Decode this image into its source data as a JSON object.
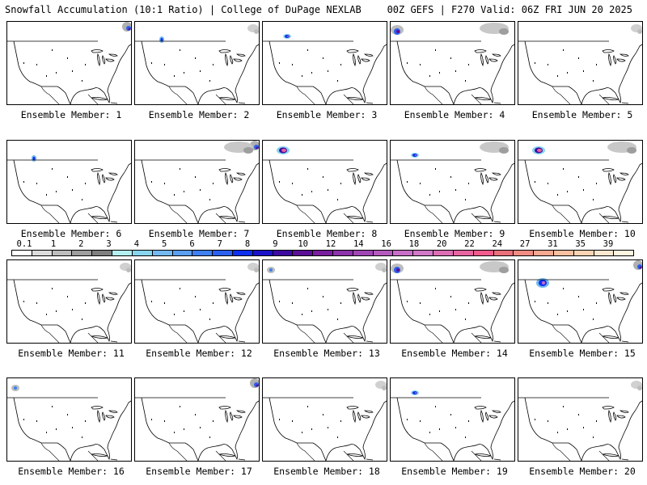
{
  "header": {
    "left": "Snowfall Accumulation (10:1 Ratio) | College of DuPage NEXLAB",
    "right": "00Z GEFS | F270 Valid: 06Z FRI JUN 20 2025"
  },
  "label_prefix": "Ensemble Member: ",
  "members": [
    {
      "id": 1,
      "label": "Ensemble Member: 1",
      "snow": [
        "ne-canada"
      ]
    },
    {
      "id": 2,
      "label": "Ensemble Member: 2",
      "snow": [
        "rockies-small",
        "ne-canada-light"
      ]
    },
    {
      "id": 3,
      "label": "Ensemble Member: 3",
      "snow": [
        "canada-rockies"
      ]
    },
    {
      "id": 4,
      "label": "Ensemble Member: 4",
      "snow": [
        "pacific-nw",
        "ne-canada-gray"
      ]
    },
    {
      "id": 5,
      "label": "Ensemble Member: 5",
      "snow": [
        "ne-canada-light"
      ]
    },
    {
      "id": 6,
      "label": "Ensemble Member: 6",
      "snow": [
        "rockies-small"
      ]
    },
    {
      "id": 7,
      "label": "Ensemble Member: 7",
      "snow": [
        "ne-canada",
        "ne-canada-gray"
      ]
    },
    {
      "id": 8,
      "label": "Ensemble Member: 8",
      "snow": [
        "canada-rockies-heavy"
      ]
    },
    {
      "id": 9,
      "label": "Ensemble Member: 9",
      "snow": [
        "canada-rockies",
        "ne-canada-gray"
      ]
    },
    {
      "id": 10,
      "label": "Ensemble Member: 10",
      "snow": [
        "canada-rockies-heavy",
        "ne-canada-gray"
      ]
    },
    {
      "id": 11,
      "label": "Ensemble Member: 11",
      "snow": [
        "ne-canada-light"
      ]
    },
    {
      "id": 12,
      "label": "Ensemble Member: 12",
      "snow": [
        "ne-canada-light"
      ]
    },
    {
      "id": 13,
      "label": "Ensemble Member: 13",
      "snow": [
        "pacific-nw-small",
        "ne-canada-light"
      ]
    },
    {
      "id": 14,
      "label": "Ensemble Member: 14",
      "snow": [
        "pacific-nw",
        "ne-canada-gray"
      ]
    },
    {
      "id": 15,
      "label": "Ensemble Member: 15",
      "snow": [
        "rockies-wide",
        "ne-canada"
      ]
    },
    {
      "id": 16,
      "label": "Ensemble Member: 16",
      "snow": [
        "pacific-nw-small"
      ]
    },
    {
      "id": 17,
      "label": "Ensemble Member: 17",
      "snow": [
        "ne-canada"
      ]
    },
    {
      "id": 18,
      "label": "Ensemble Member: 18",
      "snow": [
        "ne-canada-light"
      ]
    },
    {
      "id": 19,
      "label": "Ensemble Member: 19",
      "snow": [
        "canada-rockies"
      ]
    },
    {
      "id": 20,
      "label": "Ensemble Member: 20",
      "snow": [
        "ne-canada-light"
      ]
    }
  ],
  "colorbar": {
    "labels": [
      "0.1",
      "1",
      "2",
      "3",
      "4",
      "5",
      "6",
      "7",
      "8",
      "9",
      "10",
      "12",
      "14",
      "16",
      "18",
      "20",
      "22",
      "24",
      "27",
      "31",
      "35",
      "39"
    ],
    "colors": [
      "#ffffff",
      "#dcdcdc",
      "#bdbdbd",
      "#9e9e9e",
      "#7f7f7f",
      "#b4f0f0",
      "#87d4ee",
      "#73b9f1",
      "#5a9ff0",
      "#3f7ff0",
      "#2b5ff0",
      "#0d2ff0",
      "#1a12c8",
      "#3c0aa0",
      "#5a0f96",
      "#781e9e",
      "#8c32aa",
      "#a046b4",
      "#b45abe",
      "#c86ec8",
      "#d278c8",
      "#dc6eb4",
      "#e664a0",
      "#f05a8c",
      "#e8707a",
      "#f08c82",
      "#f4a890",
      "#f8c0a0",
      "#fad4b4",
      "#fce8d0",
      "#fff4e0"
    ]
  }
}
